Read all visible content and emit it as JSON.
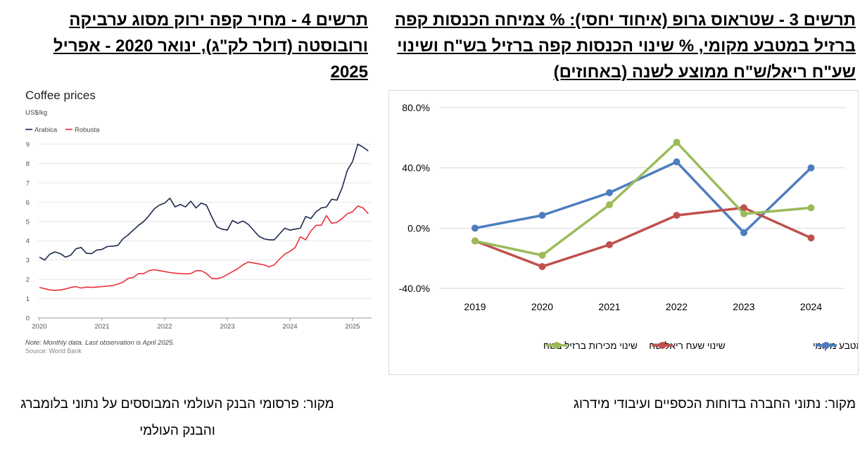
{
  "titles": {
    "right": "תרשים 3 - שטראוס גרופ (איחוד יחסי): % צמיחה הכנסות קפה ברזיל במטבע מקומי, % שינוי הכנסות קפה ברזיל בש\"ח ושינוי שע\"ח ריאל/ש\"ח ממוצע לשנה (באחוזים)",
    "left": "תרשים 4 - מחיר קפה ירוק מסוג ערביקה ורובוסטה (דולר לק\"ג), ינואר 2020 - אפריל 2025"
  },
  "sources": {
    "right": "מקור: נתוני החברה בדוחות הכספיים ועיבודי מידרוג",
    "left": "מקור: פרסומי הבנק העולמי המבוססים על נתוני בלומברג והבנק העולמי"
  },
  "chart_data": [
    {
      "type": "line",
      "title": "",
      "xlabel": "",
      "ylabel": "",
      "x": [
        "2019",
        "2020",
        "2021",
        "2022",
        "2023",
        "2024"
      ],
      "ylim": [
        -40,
        80
      ],
      "yticks": [
        "80.0%",
        "40.0%",
        "0.0%",
        "-40.0%"
      ],
      "ytick_values": [
        80,
        40,
        0,
        -40
      ],
      "grid": true,
      "legend_position": "bottom",
      "series": [
        {
          "name": "צמיחת מכירות ברזיל מטבע מקומי",
          "color": "#4E7DBF",
          "values": [
            0,
            8.5,
            23.5,
            44,
            -3,
            40
          ]
        },
        {
          "name": "שינוי שעח ריאל/שח",
          "color": "#C0504D",
          "values": [
            -8.5,
            -25.5,
            -11,
            8.5,
            13.5,
            -6.5
          ]
        },
        {
          "name": "שינוי מכירות ברזיל בשח",
          "color": "#9BBB59",
          "values": [
            -8.5,
            -18,
            15.5,
            57,
            9.5,
            13.5
          ]
        }
      ]
    },
    {
      "type": "line",
      "title": "Coffee prices",
      "ylabel": "US$/kg",
      "xlabel": "",
      "note": "Note: Monthly data. Last observation is April 2025.",
      "source": "Source: World Bank",
      "xticks": [
        "2020",
        "2021",
        "2022",
        "2023",
        "2024",
        "2025"
      ],
      "yticks": [
        "0",
        "1",
        "2",
        "3",
        "4",
        "5",
        "6",
        "7",
        "8",
        "9"
      ],
      "ylim": [
        0,
        9.5
      ],
      "x_start": 2020.0,
      "x_step_months": 1,
      "grid": true,
      "legend_position": "top-left",
      "series": [
        {
          "name": "Arabica",
          "color": "#1B2A4A",
          "values": [
            3.15,
            3.0,
            3.3,
            3.42,
            3.33,
            3.15,
            3.25,
            3.58,
            3.65,
            3.35,
            3.33,
            3.52,
            3.55,
            3.7,
            3.72,
            3.75,
            4.1,
            4.3,
            4.55,
            4.8,
            5.0,
            5.3,
            5.65,
            5.85,
            5.95,
            6.2,
            5.75,
            5.88,
            5.75,
            6.05,
            5.7,
            5.95,
            5.85,
            5.25,
            4.72,
            4.6,
            4.55,
            5.05,
            4.9,
            5.02,
            4.85,
            4.55,
            4.25,
            4.1,
            4.05,
            4.05,
            4.35,
            4.65,
            4.55,
            4.6,
            4.65,
            5.25,
            5.15,
            5.5,
            5.7,
            5.75,
            6.15,
            6.1,
            6.75,
            7.65,
            8.1,
            9.0,
            8.85,
            8.65
          ]
        },
        {
          "name": "Robusta",
          "color": "#E8303A",
          "values": [
            1.58,
            1.52,
            1.45,
            1.43,
            1.45,
            1.5,
            1.58,
            1.62,
            1.55,
            1.6,
            1.58,
            1.6,
            1.62,
            1.65,
            1.68,
            1.75,
            1.85,
            2.05,
            2.1,
            2.3,
            2.3,
            2.45,
            2.5,
            2.45,
            2.4,
            2.35,
            2.32,
            2.3,
            2.28,
            2.3,
            2.45,
            2.45,
            2.3,
            2.05,
            2.03,
            2.1,
            2.25,
            2.4,
            2.55,
            2.75,
            2.9,
            2.85,
            2.8,
            2.75,
            2.65,
            2.75,
            3.05,
            3.3,
            3.45,
            3.65,
            4.2,
            4.05,
            4.5,
            4.8,
            4.8,
            5.3,
            4.9,
            4.95,
            5.15,
            5.4,
            5.5,
            5.8,
            5.7,
            5.4
          ]
        }
      ]
    }
  ]
}
